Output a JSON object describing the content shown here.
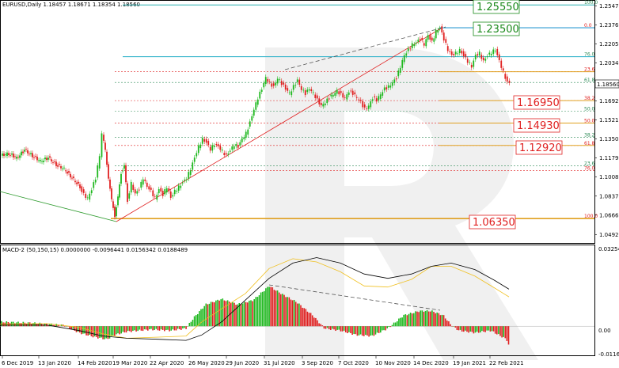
{
  "header": {
    "main": "EURUSD,Daily  1.18457 1.18671 1.18354 1.18560",
    "macd": "MACD-2 (50,150,15) 0.0000000 -0.0096441 0.0156342 0.0188489"
  },
  "price_axis": [
    "1.25470",
    "1.23760",
    "1.22050",
    "1.20340",
    "1.18630",
    "1.16920",
    "1.15210",
    "1.13500",
    "1.11790",
    "1.10080",
    "1.08370",
    "1.06660",
    "1.04920"
  ],
  "current_price": "1.18560",
  "macd_axis": [
    "0.0325449",
    "0.00",
    "-0.011653"
  ],
  "x_axis": [
    "6 Dec 2019",
    "13 Jan 2020",
    "14 Feb 2020",
    "19 Mar 2020",
    "22 Apr 2020",
    "26 May 2020",
    "29 Jun 2020",
    "31 Jul 2020",
    "3 Sep 2020",
    "7 Oct 2020",
    "10 Nov 2020",
    "14 Dec 2020",
    "19 Jan 2021",
    "22 Feb 2021"
  ],
  "badges": [
    {
      "text": "1.25550",
      "color": "#1a8a1a"
    },
    {
      "text": "1.23500",
      "color": "#1a8a1a"
    },
    {
      "text": "1.16950",
      "color": "#e02020"
    },
    {
      "text": "1.14930",
      "color": "#e02020"
    },
    {
      "text": "1.12920",
      "color": "#e02020"
    },
    {
      "text": "1.06350",
      "color": "#e02020"
    }
  ],
  "fib_upper": [
    {
      "label": "100.0",
      "price": 1.2555,
      "color": "#2e8b57"
    },
    {
      "label": "0.0",
      "price": 1.235,
      "color": "#e02020"
    },
    {
      "label": "76.0",
      "price": 1.209,
      "color": "#2e8b57"
    },
    {
      "label": "23.6",
      "price": 1.1955,
      "color": "#e02020"
    },
    {
      "label": "61.8",
      "price": 1.1858,
      "color": "#2e8b57"
    },
    {
      "label": "38.2",
      "price": 1.1695,
      "color": "#e02020"
    },
    {
      "label": "50.0",
      "price": 1.16,
      "color": "#2e8b57"
    },
    {
      "label": "50.0",
      "price": 1.1493,
      "color": "#e02020"
    },
    {
      "label": "38.2",
      "price": 1.1365,
      "color": "#2e8b57"
    },
    {
      "label": "61.8",
      "price": 1.1292,
      "color": "#e02020"
    },
    {
      "label": "23.6",
      "price": 1.111,
      "color": "#2e8b57"
    },
    {
      "label": "76.0",
      "price": 1.1068,
      "color": "#e02020"
    },
    {
      "label": "100.0",
      "price": 1.0635,
      "color": "#e02020"
    }
  ],
  "chart_data": {
    "type": "candlestick",
    "symbol": "EURUSD",
    "timeframe": "Daily",
    "ohlc_last": {
      "open": 1.18457,
      "high": 1.18671,
      "low": 1.18354,
      "close": 1.1856
    },
    "ylim": [
      1.043,
      1.2585
    ],
    "price_path": [
      [
        0,
        1.12
      ],
      [
        10,
        1.122
      ],
      [
        20,
        1.118
      ],
      [
        30,
        1.125
      ],
      [
        40,
        1.12
      ],
      [
        50,
        1.115
      ],
      [
        60,
        1.118
      ],
      [
        70,
        1.112
      ],
      [
        80,
        1.108
      ],
      [
        90,
        1.1
      ],
      [
        100,
        1.092
      ],
      [
        105,
        1.085
      ],
      [
        110,
        1.082
      ],
      [
        115,
        1.09
      ],
      [
        120,
        1.1
      ],
      [
        125,
        1.12
      ],
      [
        128,
        1.14
      ],
      [
        132,
        1.125
      ],
      [
        136,
        1.1
      ],
      [
        140,
        1.08
      ],
      [
        144,
        1.066
      ],
      [
        148,
        1.082
      ],
      [
        152,
        1.105
      ],
      [
        156,
        1.11
      ],
      [
        160,
        1.08
      ],
      [
        165,
        1.095
      ],
      [
        170,
        1.086
      ],
      [
        175,
        1.09
      ],
      [
        180,
        1.1
      ],
      [
        185,
        1.092
      ],
      [
        190,
        1.088
      ],
      [
        195,
        1.082
      ],
      [
        200,
        1.09
      ],
      [
        205,
        1.085
      ],
      [
        210,
        1.092
      ],
      [
        215,
        1.082
      ],
      [
        220,
        1.088
      ],
      [
        225,
        1.092
      ],
      [
        230,
        1.096
      ],
      [
        235,
        1.1
      ],
      [
        240,
        1.108
      ],
      [
        245,
        1.118
      ],
      [
        250,
        1.128
      ],
      [
        255,
        1.135
      ],
      [
        260,
        1.132
      ],
      [
        265,
        1.126
      ],
      [
        270,
        1.13
      ],
      [
        275,
        1.128
      ],
      [
        280,
        1.124
      ],
      [
        285,
        1.12
      ],
      [
        290,
        1.125
      ],
      [
        295,
        1.13
      ],
      [
        300,
        1.128
      ],
      [
        305,
        1.135
      ],
      [
        310,
        1.14
      ],
      [
        315,
        1.15
      ],
      [
        320,
        1.162
      ],
      [
        325,
        1.172
      ],
      [
        330,
        1.18
      ],
      [
        335,
        1.19
      ],
      [
        340,
        1.185
      ],
      [
        345,
        1.182
      ],
      [
        350,
        1.19
      ],
      [
        355,
        1.185
      ],
      [
        360,
        1.18
      ],
      [
        365,
        1.176
      ],
      [
        370,
        1.182
      ],
      [
        375,
        1.188
      ],
      [
        380,
        1.18
      ],
      [
        385,
        1.176
      ],
      [
        390,
        1.18
      ],
      [
        395,
        1.176
      ],
      [
        400,
        1.17
      ],
      [
        405,
        1.165
      ],
      [
        410,
        1.168
      ],
      [
        415,
        1.172
      ],
      [
        420,
        1.175
      ],
      [
        425,
        1.178
      ],
      [
        430,
        1.175
      ],
      [
        435,
        1.172
      ],
      [
        440,
        1.178
      ],
      [
        445,
        1.176
      ],
      [
        450,
        1.172
      ],
      [
        455,
        1.168
      ],
      [
        460,
        1.162
      ],
      [
        465,
        1.165
      ],
      [
        470,
        1.172
      ],
      [
        475,
        1.17
      ],
      [
        480,
        1.175
      ],
      [
        485,
        1.18
      ],
      [
        490,
        1.182
      ],
      [
        495,
        1.186
      ],
      [
        500,
        1.19
      ],
      [
        505,
        1.2
      ],
      [
        510,
        1.21
      ],
      [
        515,
        1.215
      ],
      [
        520,
        1.22
      ],
      [
        525,
        1.222
      ],
      [
        530,
        1.225
      ],
      [
        535,
        1.22
      ],
      [
        540,
        1.228
      ],
      [
        545,
        1.222
      ],
      [
        550,
        1.232
      ],
      [
        555,
        1.235
      ],
      [
        560,
        1.225
      ],
      [
        565,
        1.215
      ],
      [
        570,
        1.21
      ],
      [
        575,
        1.212
      ],
      [
        580,
        1.215
      ],
      [
        585,
        1.21
      ],
      [
        590,
        1.205
      ],
      [
        595,
        1.2
      ],
      [
        600,
        1.21
      ],
      [
        605,
        1.212
      ],
      [
        610,
        1.205
      ],
      [
        615,
        1.21
      ],
      [
        620,
        1.213
      ],
      [
        625,
        1.215
      ],
      [
        630,
        1.205
      ],
      [
        635,
        1.195
      ],
      [
        640,
        1.186
      ],
      [
        643,
        1.1856
      ]
    ],
    "macd_ylim": [
      -0.013,
      0.0335
    ]
  }
}
